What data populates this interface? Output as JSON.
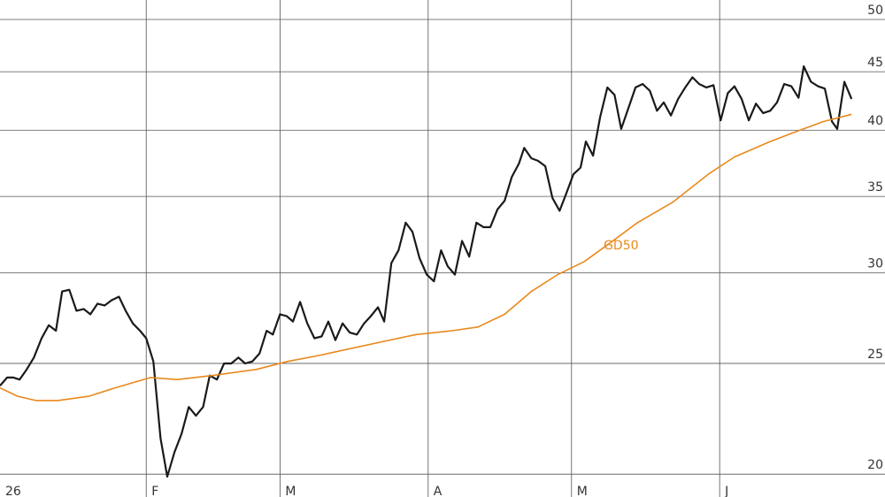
{
  "chart_data": {
    "type": "line",
    "log_scale": true,
    "grid": true,
    "xlim": [
      0.4,
      185.6
    ],
    "xticks": [
      {
        "value": 0,
        "label": "26"
      },
      {
        "value": 31,
        "label": "F"
      },
      {
        "value": 59,
        "label": "M"
      },
      {
        "value": 90,
        "label": "A"
      },
      {
        "value": 120,
        "label": "M"
      },
      {
        "value": 151,
        "label": "J"
      }
    ],
    "ylim": [
      19.1,
      52
    ],
    "yticks": [
      20,
      25,
      30,
      35,
      40,
      45,
      50
    ],
    "series": [
      {
        "color": "#1a1a1a",
        "x": [
          0.4,
          1.9,
          3.2,
          4.5,
          6.0,
          7.5,
          9.1,
          10.6,
          12.1,
          13.4,
          14.9,
          16.4,
          17.9,
          19.3,
          20.8,
          22.3,
          23.8,
          25.3,
          26.7,
          28.2,
          29.7,
          31.0,
          32.5,
          34.0,
          35.4,
          36.9,
          38.4,
          39.9,
          41.4,
          42.9,
          44.3,
          45.8,
          47.3,
          48.8,
          50.3,
          51.7,
          53.2,
          54.7,
          56.2,
          57.5,
          59.0,
          60.4,
          61.7,
          63.2,
          64.7,
          66.2,
          67.7,
          69.1,
          70.6,
          72.1,
          73.6,
          75.1,
          76.6,
          78.0,
          79.5,
          80.8,
          82.3,
          83.8,
          85.3,
          86.7,
          88.2,
          89.7,
          91.2,
          92.7,
          94.1,
          95.6,
          97.1,
          98.6,
          100.1,
          101.6,
          103.0,
          104.5,
          106.0,
          107.5,
          109.0,
          110.1,
          111.6,
          113.0,
          114.5,
          116.0,
          117.5,
          119.0,
          120.4,
          121.9,
          123.0,
          124.5,
          126.0,
          127.5,
          129.0,
          130.4,
          131.9,
          133.4,
          134.9,
          136.4,
          137.9,
          139.3,
          140.8,
          142.3,
          143.8,
          145.3,
          146.7,
          148.2,
          149.7,
          151.2,
          152.7,
          154.1,
          155.6,
          157.1,
          158.6,
          160.1,
          161.6,
          163.0,
          164.5,
          166.0,
          167.5,
          168.6,
          170.1,
          171.6,
          173.0,
          174.5,
          175.6,
          177.1,
          178.6
        ],
        "values": [
          23.9,
          24.3,
          24.3,
          24.2,
          24.7,
          25.3,
          26.3,
          27.0,
          26.7,
          28.9,
          29.0,
          27.8,
          27.9,
          27.6,
          28.2,
          28.1,
          28.4,
          28.6,
          27.8,
          27.1,
          26.7,
          26.3,
          25.1,
          21.5,
          19.9,
          20.9,
          21.7,
          22.9,
          22.5,
          22.9,
          24.4,
          24.2,
          25.0,
          25.0,
          25.3,
          25.0,
          25.1,
          25.5,
          26.7,
          26.5,
          27.6,
          27.5,
          27.2,
          28.3,
          27.1,
          26.3,
          26.4,
          27.2,
          26.2,
          27.1,
          26.6,
          26.5,
          27.1,
          27.5,
          28.0,
          27.2,
          30.6,
          31.4,
          33.2,
          32.6,
          30.9,
          29.9,
          29.5,
          31.4,
          30.4,
          29.9,
          32.0,
          31.0,
          33.2,
          32.9,
          32.9,
          34.1,
          34.7,
          36.4,
          37.4,
          38.6,
          37.8,
          37.6,
          37.2,
          34.9,
          34.0,
          35.3,
          36.6,
          37.1,
          39.1,
          38.0,
          41.1,
          43.6,
          42.95,
          40.1,
          41.8,
          43.6,
          43.9,
          43.3,
          41.6,
          42.3,
          41.2,
          42.6,
          43.6,
          44.5,
          43.9,
          43.6,
          43.8,
          40.8,
          43.1,
          43.7,
          42.6,
          40.8,
          42.2,
          41.4,
          41.6,
          42.3,
          43.9,
          43.7,
          42.7,
          45.5,
          44.1,
          43.7,
          43.5,
          40.7,
          40.1,
          44.1,
          42.6
        ]
      },
      {
        "name": "GD50",
        "color": "#e8891c",
        "x": [
          0.4,
          4.1,
          7.9,
          12.5,
          19.0,
          24.5,
          31.9,
          37.5,
          44.9,
          54.1,
          60.6,
          67.1,
          74.5,
          81.9,
          87.5,
          94.9,
          100.4,
          106.0,
          111.6,
          117.1,
          122.7,
          128.2,
          133.8,
          141.2,
          148.6,
          154.1,
          161.6,
          167.1,
          172.7,
          178.6
        ],
        "values": [
          23.8,
          23.4,
          23.2,
          23.2,
          23.4,
          23.8,
          24.3,
          24.2,
          24.4,
          24.7,
          25.1,
          25.4,
          25.8,
          26.2,
          26.5,
          26.7,
          26.9,
          27.6,
          28.9,
          29.9,
          30.7,
          31.9,
          33.2,
          34.6,
          36.6,
          37.9,
          39.1,
          39.9,
          40.7,
          41.3
        ]
      }
    ]
  }
}
